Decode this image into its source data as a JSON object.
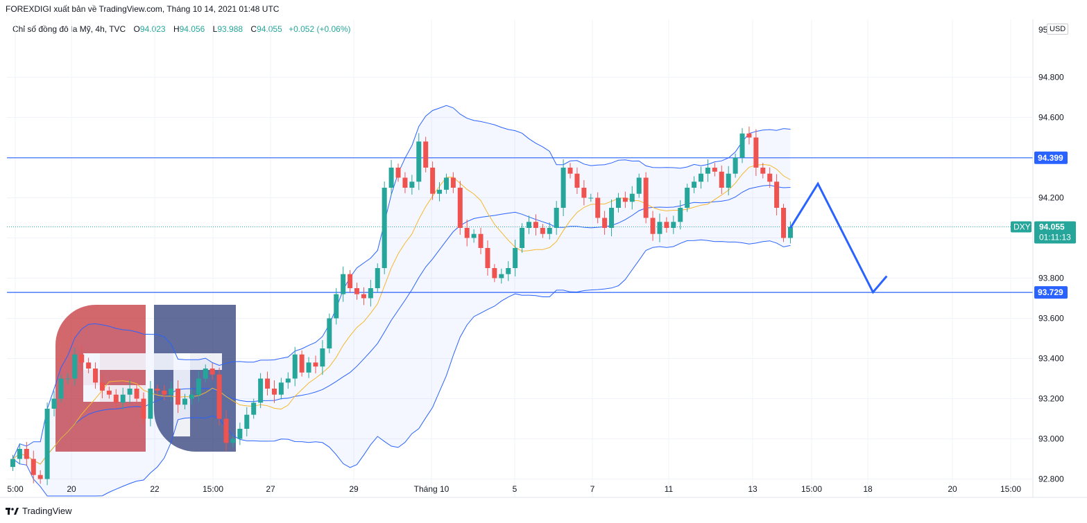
{
  "header": {
    "publisher_text": "FOREXDIGI xuất bản về TradingView.com, Tháng 10 14, 2021 01:48 UTC"
  },
  "legend": {
    "symbol": "Chỉ số đồng đô la Mỹ, 4h, TVC",
    "open_label": "O",
    "open": "94.023",
    "high_label": "H",
    "high": "94.056",
    "low_label": "L",
    "low": "93.988",
    "close_label": "C",
    "close": "94.055",
    "change": "+0.052 (+0.06%)"
  },
  "axis": {
    "currency": "USD",
    "top_partial_label": "95",
    "current_symbol": "DXY",
    "current_price": "94.055",
    "countdown": "01:11:13"
  },
  "colors": {
    "up": "#26a69a",
    "down": "#ef5350",
    "band": "#2962ff",
    "ma": "#f5b82e",
    "level": "#2962ff",
    "arrow": "#2962ff"
  },
  "footer": {
    "brand": "TradingView"
  },
  "chart_data": {
    "type": "candlestick",
    "ylim": [
      92.75,
      95.0
    ],
    "y_ticks": [
      92.8,
      93.0,
      93.2,
      93.4,
      93.6,
      93.8,
      94.0,
      94.2,
      94.4,
      94.6,
      94.8
    ],
    "y_tick_labels": [
      "92.800",
      "93.000",
      "93.200",
      "93.400",
      "93.600",
      "93.800",
      "94.000",
      "94.200",
      "94.400",
      "94.600",
      "94.800"
    ],
    "x_tick_labels": [
      "5:00",
      "20",
      "22",
      "15:00",
      "27",
      "29",
      "Tháng 10",
      "5",
      "7",
      "11",
      "13",
      "15:00",
      "18",
      "20",
      "15:00"
    ],
    "levels": [
      {
        "value": 94.399,
        "label": "94.399"
      },
      {
        "value": 93.729,
        "label": "93.729"
      }
    ],
    "current_price": 94.055,
    "closes": [
      92.9,
      92.95,
      92.9,
      92.82,
      92.8,
      93.15,
      93.2,
      93.3,
      93.3,
      93.42,
      93.38,
      93.35,
      93.28,
      93.24,
      93.22,
      93.18,
      93.22,
      93.25,
      93.2,
      93.1,
      93.25,
      93.24,
      93.22,
      93.25,
      93.17,
      93.2,
      93.22,
      93.3,
      93.35,
      93.32,
      93.1,
      92.98,
      93.0,
      93.05,
      93.12,
      93.18,
      93.3,
      93.25,
      93.22,
      93.28,
      93.3,
      93.42,
      93.33,
      93.38,
      93.36,
      93.45,
      93.6,
      93.72,
      93.82,
      93.75,
      93.72,
      93.7,
      93.75,
      93.85,
      94.25,
      94.35,
      94.3,
      94.25,
      94.28,
      94.48,
      94.35,
      94.22,
      94.24,
      94.3,
      94.25,
      94.05,
      94.0,
      94.02,
      93.95,
      93.85,
      93.8,
      93.82,
      93.85,
      93.95,
      94.05,
      94.08,
      94.05,
      94.02,
      94.05,
      94.15,
      94.35,
      94.32,
      94.25,
      94.2,
      94.2,
      94.1,
      94.05,
      94.15,
      94.2,
      94.18,
      94.22,
      94.3,
      94.1,
      94.02,
      94.08,
      94.05,
      94.08,
      94.15,
      94.25,
      94.28,
      94.32,
      94.35,
      94.33,
      94.25,
      94.32,
      94.4,
      94.52,
      94.5,
      94.35,
      94.32,
      94.28,
      94.15,
      94.0,
      94.055
    ],
    "ma_length": 20,
    "bollinger_length": 20,
    "projection_path": [
      {
        "x_index": 113,
        "y": 94.05
      },
      {
        "x_index": 117,
        "y": 94.27
      },
      {
        "x_index": 125,
        "y": 93.73
      },
      {
        "x_index": 127,
        "y": 93.81
      }
    ]
  }
}
